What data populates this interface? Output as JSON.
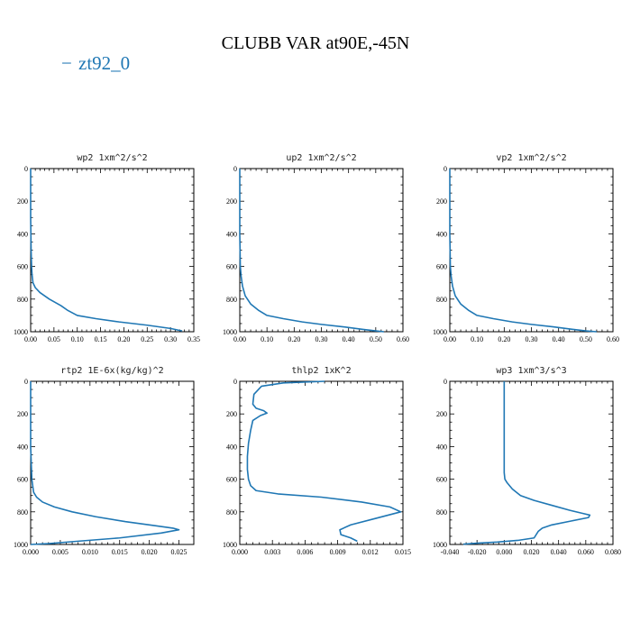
{
  "figure": {
    "title": "CLUBB VAR at90E,-45N",
    "legend": {
      "label": "zt92_0",
      "marker": "−"
    },
    "series_color": "#1f77b4"
  },
  "chart_data": [
    {
      "type": "line",
      "title": "wp2   1xm^2/s^2",
      "xlim": [
        0,
        0.35
      ],
      "ylim": [
        1000,
        0
      ],
      "xticks": [
        0,
        0.05,
        0.1,
        0.15,
        0.2,
        0.25,
        0.3,
        0.35
      ],
      "xticklabels": [
        "0.00",
        "0.05",
        "0.10",
        "0.15",
        "0.20",
        "0.25",
        "0.30",
        "0.35"
      ],
      "yticks": [
        0,
        200,
        400,
        600,
        800,
        1000
      ],
      "yticklabels": [
        "0",
        "200",
        "400",
        "600",
        "800",
        "1000"
      ],
      "series": [
        {
          "name": "zt92_0",
          "x": [
            0,
            0,
            0.001,
            0.002,
            0.003,
            0.005,
            0.01,
            0.02,
            0.04,
            0.065,
            0.08,
            0.1,
            0.14,
            0.19,
            0.25,
            0.3,
            0.325
          ],
          "y": [
            0,
            300,
            500,
            600,
            650,
            700,
            730,
            760,
            800,
            840,
            870,
            900,
            920,
            940,
            960,
            980,
            995
          ]
        }
      ]
    },
    {
      "type": "line",
      "title": "up2   1xm^2/s^2",
      "xlim": [
        0,
        0.6
      ],
      "ylim": [
        1000,
        0
      ],
      "xticks": [
        0,
        0.1,
        0.2,
        0.3,
        0.4,
        0.5,
        0.6
      ],
      "xticklabels": [
        "0.00",
        "0.10",
        "0.20",
        "0.30",
        "0.40",
        "0.50",
        "0.60"
      ],
      "yticks": [
        0,
        200,
        400,
        600,
        800,
        1000
      ],
      "yticklabels": [
        "0",
        "200",
        "400",
        "600",
        "800",
        "1000"
      ],
      "series": [
        {
          "name": "zt92_0",
          "x": [
            0,
            0,
            0.002,
            0.005,
            0.01,
            0.02,
            0.04,
            0.07,
            0.1,
            0.16,
            0.23,
            0.3,
            0.38,
            0.45,
            0.5,
            0.53
          ],
          "y": [
            0,
            400,
            600,
            660,
            720,
            780,
            830,
            870,
            900,
            920,
            940,
            955,
            970,
            985,
            995,
            1000
          ]
        }
      ]
    },
    {
      "type": "line",
      "title": "vp2   1xm^2/s^2",
      "xlim": [
        0,
        0.6
      ],
      "ylim": [
        1000,
        0
      ],
      "xticks": [
        0,
        0.1,
        0.2,
        0.3,
        0.4,
        0.5,
        0.6
      ],
      "xticklabels": [
        "0.00",
        "0.10",
        "0.20",
        "0.30",
        "0.40",
        "0.50",
        "0.60"
      ],
      "yticks": [
        0,
        200,
        400,
        600,
        800,
        1000
      ],
      "yticklabels": [
        "0",
        "200",
        "400",
        "600",
        "800",
        "1000"
      ],
      "series": [
        {
          "name": "zt92_0",
          "x": [
            0,
            0,
            0.002,
            0.005,
            0.01,
            0.02,
            0.04,
            0.07,
            0.1,
            0.16,
            0.23,
            0.3,
            0.38,
            0.45,
            0.5,
            0.54
          ],
          "y": [
            0,
            400,
            600,
            660,
            720,
            780,
            830,
            870,
            900,
            920,
            940,
            955,
            970,
            985,
            995,
            1000
          ]
        }
      ]
    },
    {
      "type": "line",
      "title": "rtp2   1E-6x(kg/kg)^2",
      "xlim": [
        0,
        0.0275
      ],
      "ylim": [
        1000,
        0
      ],
      "xticks": [
        0,
        0.005,
        0.01,
        0.015,
        0.02,
        0.025
      ],
      "xticklabels": [
        "0.000",
        "0.005",
        "0.010",
        "0.015",
        "0.020",
        "0.025"
      ],
      "yticks": [
        0,
        200,
        400,
        600,
        800,
        1000
      ],
      "yticklabels": [
        "0",
        "200",
        "400",
        "600",
        "800",
        "1000"
      ],
      "series": [
        {
          "name": "zt92_0",
          "x": [
            0,
            0,
            0.0002,
            0.0005,
            0.001,
            0.002,
            0.004,
            0.007,
            0.011,
            0.016,
            0.021,
            0.024,
            0.025,
            0.022,
            0.015,
            0.008,
            0.003,
            0
          ],
          "y": [
            0,
            400,
            600,
            680,
            710,
            740,
            770,
            800,
            830,
            860,
            885,
            900,
            910,
            930,
            960,
            980,
            995,
            1000
          ]
        }
      ]
    },
    {
      "type": "line",
      "title": "thlp2   1xK^2",
      "xlim": [
        0,
        0.015
      ],
      "ylim": [
        1000,
        0
      ],
      "xticks": [
        0,
        0.003,
        0.006,
        0.009,
        0.012,
        0.015
      ],
      "xticklabels": [
        "0.000",
        "0.003",
        "0.006",
        "0.009",
        "0.012",
        "0.015"
      ],
      "yticks": [
        0,
        200,
        400,
        600,
        800,
        1000
      ],
      "yticklabels": [
        "0",
        "200",
        "400",
        "600",
        "800",
        "1000"
      ],
      "series": [
        {
          "name": "zt92_0",
          "x": [
            0.0078,
            0.004,
            0.002,
            0.0013,
            0.0012,
            0.0015,
            0.0022,
            0.0025,
            0.0019,
            0.0012,
            0.001,
            0.0008,
            0.0007,
            0.0007,
            0.0008,
            0.001,
            0.0015,
            0.0035,
            0.0075,
            0.0112,
            0.0138,
            0.0148,
            0.0125,
            0.0102,
            0.0092,
            0.0093,
            0.0102,
            0.0108
          ],
          "y": [
            0,
            10,
            30,
            80,
            140,
            165,
            180,
            195,
            210,
            240,
            300,
            380,
            460,
            540,
            600,
            640,
            670,
            690,
            710,
            740,
            770,
            800,
            840,
            880,
            910,
            940,
            960,
            980
          ]
        }
      ]
    },
    {
      "type": "line",
      "title": "wp3   1xm^3/s^3",
      "xlim": [
        -0.04,
        0.08
      ],
      "ylim": [
        1000,
        0
      ],
      "xticks": [
        -0.04,
        -0.02,
        0,
        0.02,
        0.04,
        0.06,
        0.08
      ],
      "xticklabels": [
        "-0.040",
        "-0.020",
        "0.000",
        "0.020",
        "0.040",
        "0.060",
        "0.080"
      ],
      "yticks": [
        0,
        200,
        400,
        600,
        800,
        1000
      ],
      "yticklabels": [
        "0",
        "200",
        "400",
        "600",
        "800",
        "1000"
      ],
      "series": [
        {
          "name": "zt92_0",
          "x": [
            0,
            0,
            0,
            0,
            0.0005,
            0.002,
            0.006,
            0.012,
            0.022,
            0.035,
            0.048,
            0.058,
            0.063,
            0.062,
            0.05,
            0.035,
            0.028,
            0.025,
            0.022,
            0.01,
            -0.005,
            -0.02,
            -0.03
          ],
          "y": [
            0,
            200,
            400,
            560,
            600,
            620,
            660,
            700,
            730,
            760,
            790,
            810,
            820,
            835,
            855,
            880,
            900,
            920,
            960,
            975,
            985,
            992,
            998
          ]
        }
      ]
    }
  ]
}
